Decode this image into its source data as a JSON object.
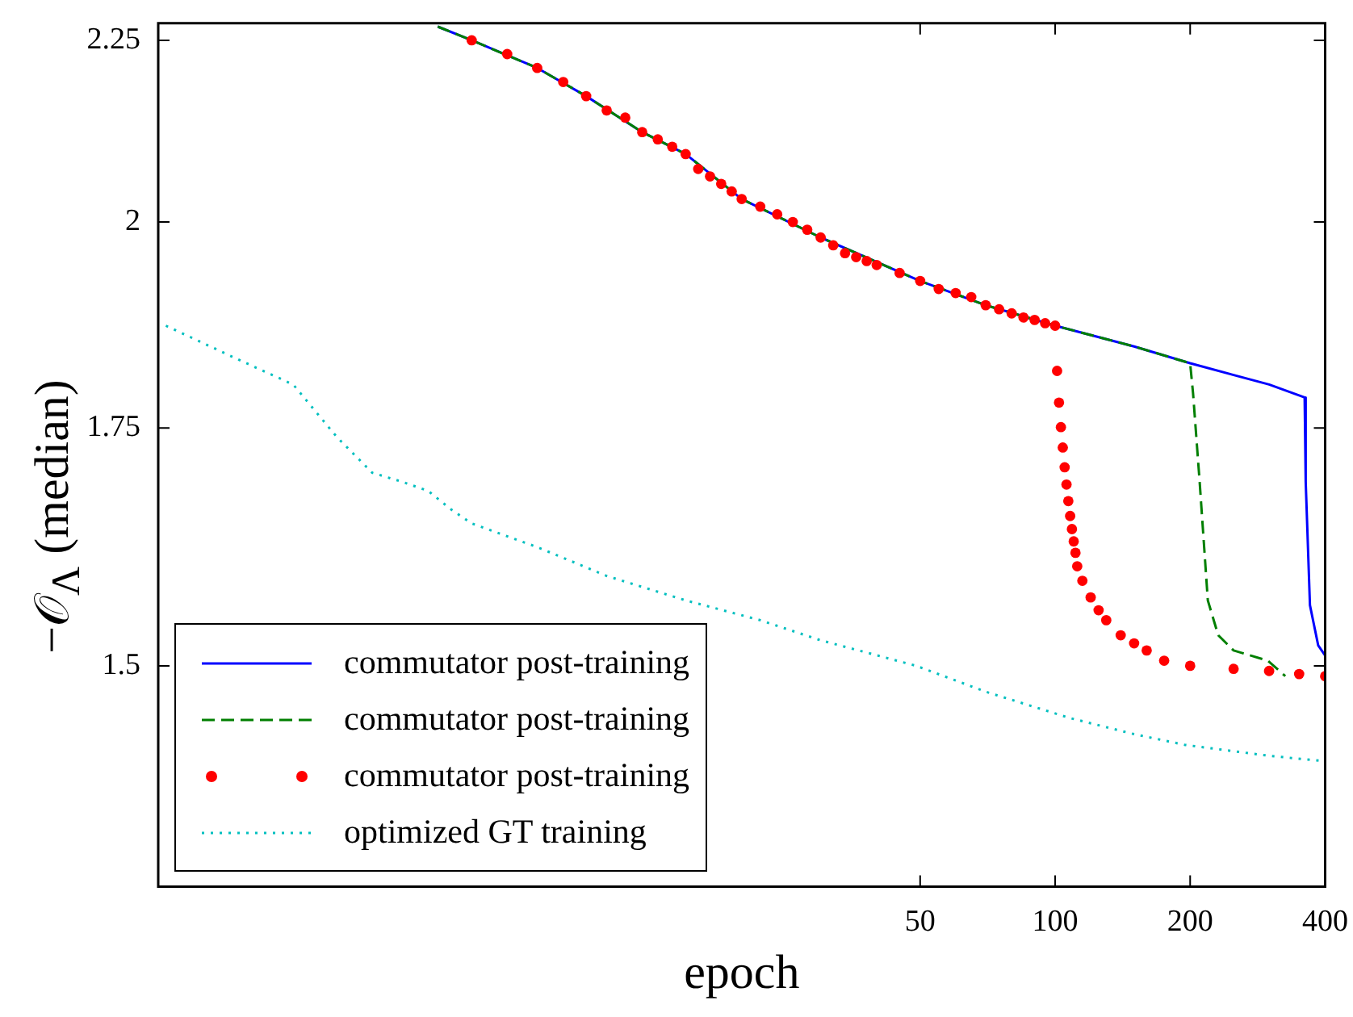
{
  "chart_data": {
    "type": "line",
    "xlabel": "epoch",
    "ylabel": "−𝒪$_{Λ}$ (median)",
    "log": "xy",
    "xlim": [
      1,
      400
    ],
    "ylim": [
      1.3,
      2.275
    ],
    "xticks": [
      50,
      100,
      200,
      400
    ],
    "yticks": [
      1.5,
      1.75,
      2,
      2.25
    ],
    "legend": "bottom left",
    "series": [
      {
        "name": "commutator post-training",
        "line_style": "solid",
        "color": "#0000ff",
        "x": [
          4.2,
          5,
          7,
          9,
          12,
          15,
          20,
          30,
          50,
          70,
          100,
          150,
          200,
          300,
          360,
          362,
          370,
          386,
          400
        ],
        "values": [
          2.27,
          2.25,
          2.21,
          2.17,
          2.12,
          2.09,
          2.03,
          1.98,
          1.925,
          1.895,
          1.87,
          1.845,
          1.825,
          1.8,
          1.785,
          1.69,
          1.56,
          1.52,
          1.51
        ]
      },
      {
        "name": "commutator post-training",
        "line_style": "dashed",
        "color": "#007f00",
        "x": [
          4.2,
          5,
          7,
          9,
          12,
          15,
          20,
          30,
          50,
          70,
          100,
          150,
          200,
          203,
          210,
          219,
          231,
          250,
          298,
          326
        ],
        "values": [
          2.27,
          2.25,
          2.21,
          2.17,
          2.12,
          2.09,
          2.03,
          1.98,
          1.925,
          1.895,
          1.87,
          1.845,
          1.825,
          1.79,
          1.69,
          1.565,
          1.53,
          1.515,
          1.505,
          1.49
        ]
      },
      {
        "name": "commutator post-training",
        "type": "scatter",
        "marker": "circle",
        "color": "#ff0000",
        "x": [
          5,
          6,
          7,
          8,
          9,
          10,
          11,
          12,
          13,
          14,
          15,
          16,
          17,
          18,
          19,
          20,
          22,
          24,
          26,
          28,
          30,
          32,
          34,
          36,
          38,
          40,
          45,
          50,
          55,
          60,
          65,
          70,
          75,
          80,
          85,
          90,
          95,
          100,
          101,
          102,
          103,
          104,
          105,
          106,
          107,
          108,
          109,
          110,
          111,
          112,
          115,
          120,
          125,
          130,
          140,
          150,
          160,
          175,
          200,
          250,
          300,
          350,
          400
        ],
        "values": [
          2.25,
          2.23,
          2.21,
          2.19,
          2.17,
          2.15,
          2.14,
          2.12,
          2.11,
          2.1,
          2.09,
          2.07,
          2.06,
          2.05,
          2.04,
          2.03,
          2.02,
          2.01,
          2,
          1.99,
          1.98,
          1.97,
          1.96,
          1.955,
          1.95,
          1.945,
          1.935,
          1.925,
          1.915,
          1.91,
          1.905,
          1.895,
          1.89,
          1.885,
          1.88,
          1.877,
          1.873,
          1.87,
          1.816,
          1.779,
          1.751,
          1.728,
          1.706,
          1.687,
          1.669,
          1.653,
          1.639,
          1.626,
          1.614,
          1.6,
          1.585,
          1.568,
          1.555,
          1.545,
          1.53,
          1.522,
          1.515,
          1.505,
          1.5,
          1.497,
          1.495,
          1.492,
          1.49
        ]
      },
      {
        "name": "optimized GT training",
        "line_style": "dotted",
        "color": "#00bfbf",
        "x": [
          1.04,
          1.5,
          2,
          2.5,
          3,
          3.5,
          4,
          4.5,
          5,
          7,
          10,
          15,
          22,
          30,
          49,
          70,
          108,
          150,
          195,
          300,
          400
        ],
        "values": [
          1.87,
          1.83,
          1.8,
          1.74,
          1.7,
          1.69,
          1.68,
          1.66,
          1.645,
          1.62,
          1.59,
          1.565,
          1.545,
          1.525,
          1.5,
          1.475,
          1.45,
          1.435,
          1.425,
          1.415,
          1.41
        ]
      }
    ]
  }
}
